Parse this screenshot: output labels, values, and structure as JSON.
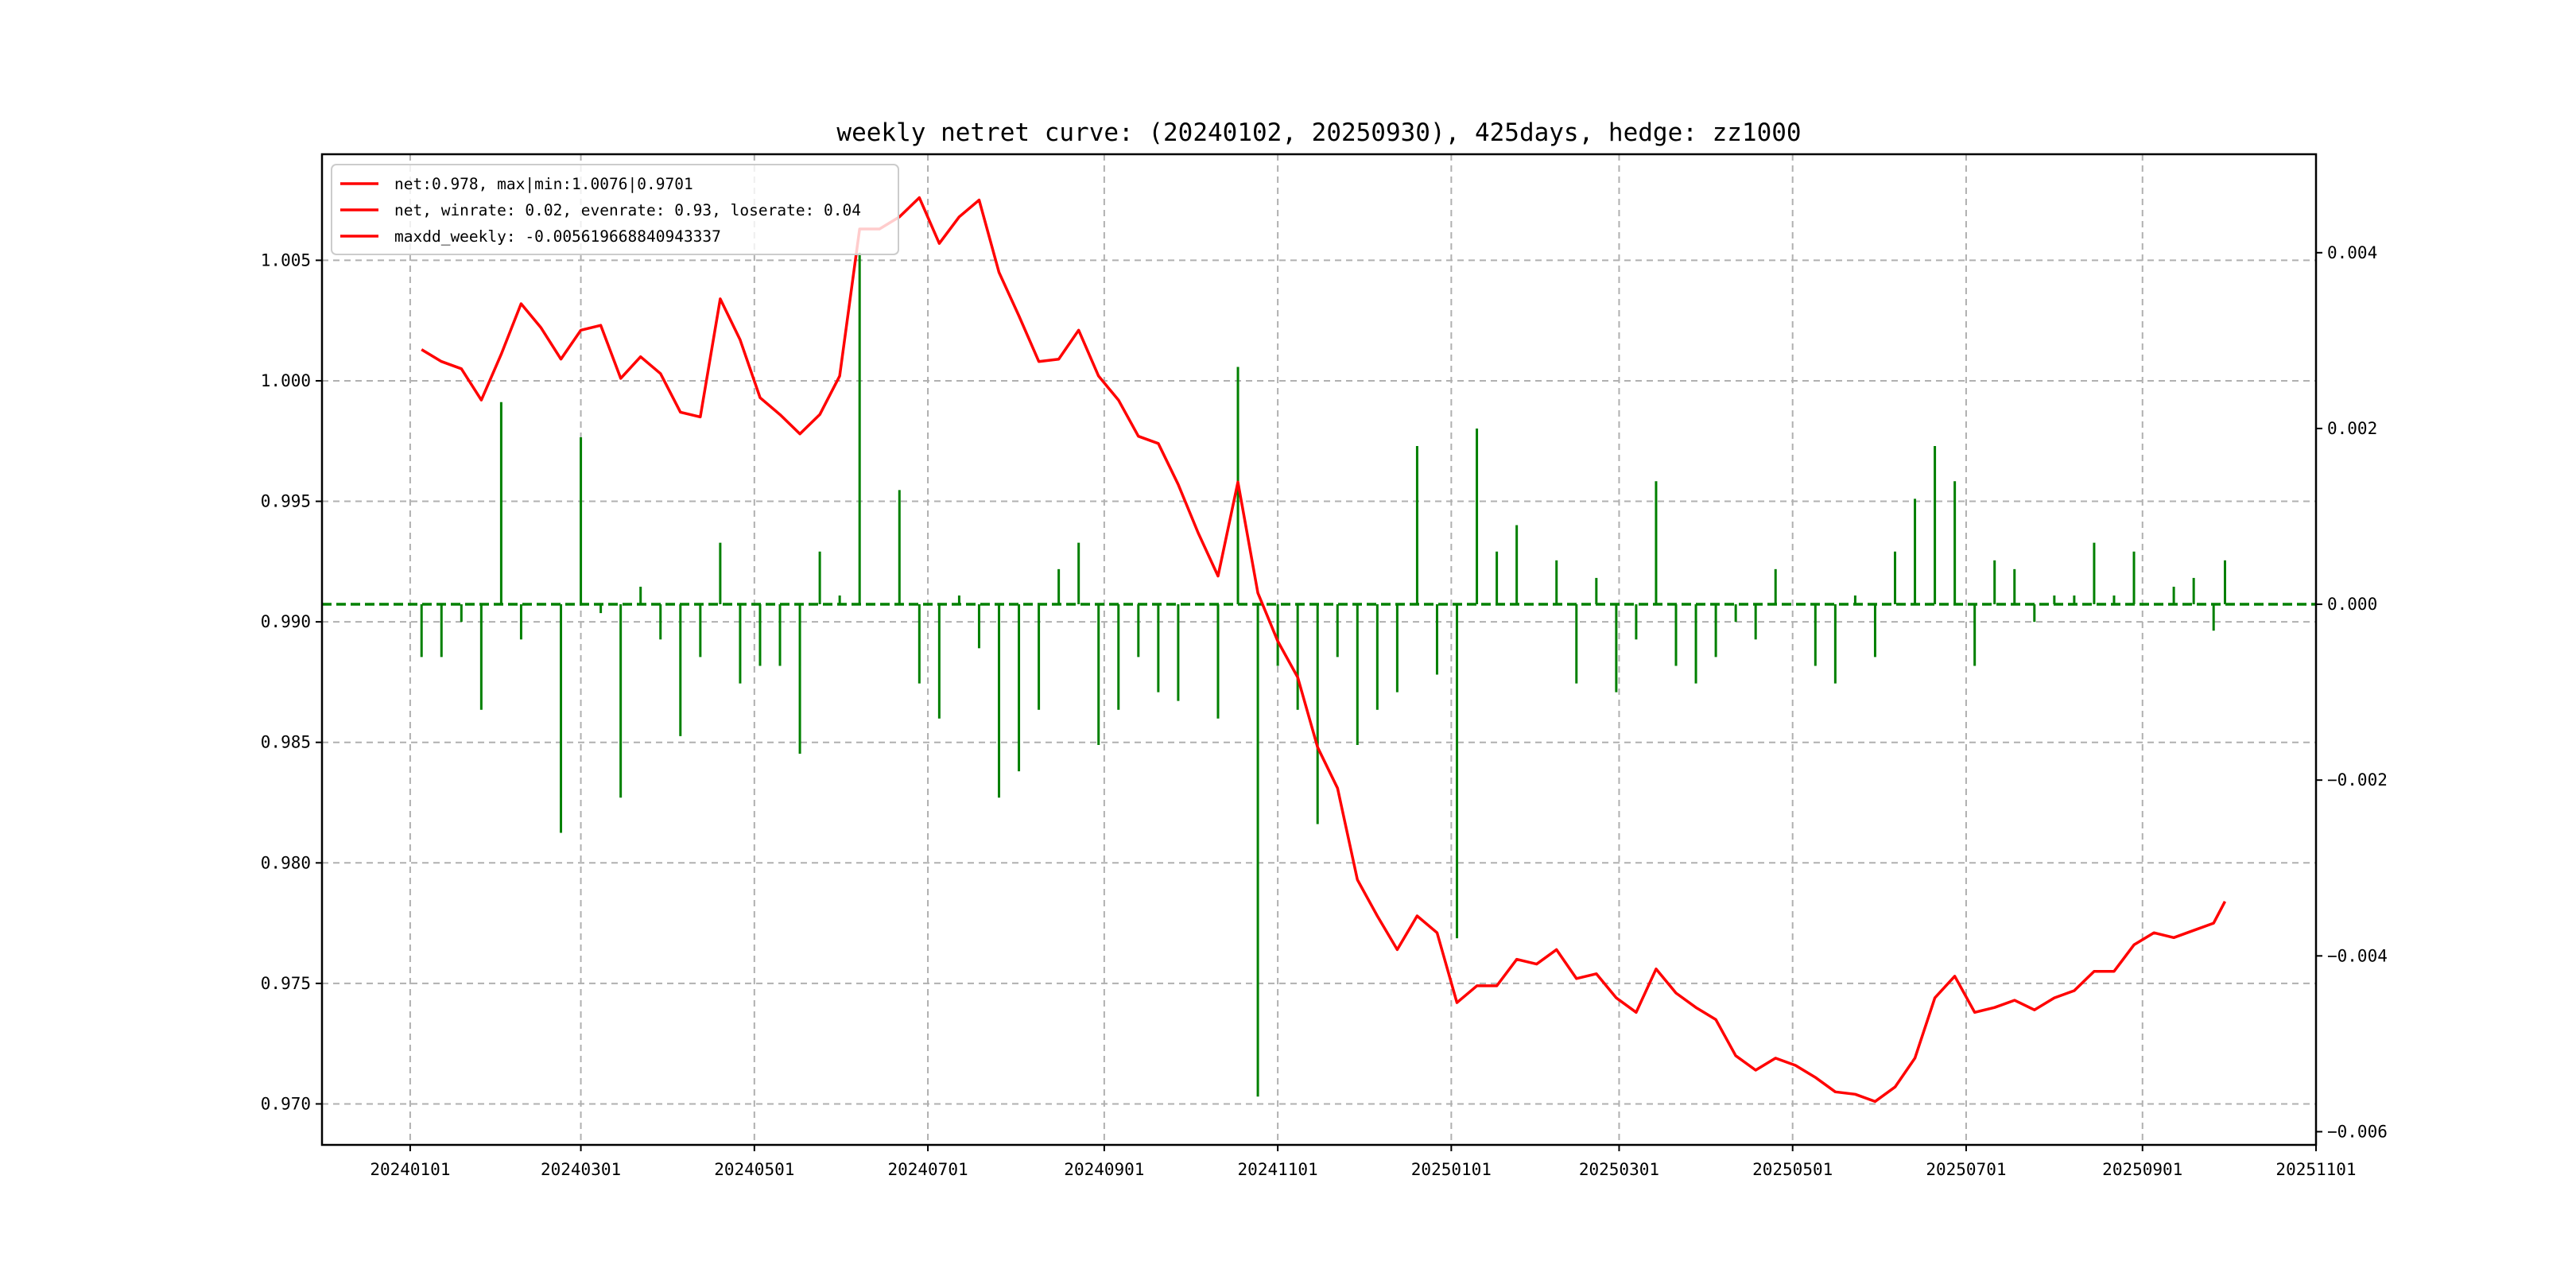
{
  "chart_data": {
    "type": "line+bar",
    "title": "weekly netret curve: (20240102, 20250930), 425days, hedge: zz1000",
    "xlabel": "",
    "ylabel": "",
    "x_start_date": "2024-01-05",
    "x_end_date": "2025-09-30",
    "xlim_dates": [
      "2023-12-05",
      "2025-11-01"
    ],
    "x_ticks": [
      "20240101",
      "20240301",
      "20240501",
      "20240701",
      "20240901",
      "20241101",
      "20250101",
      "20250301",
      "20250501",
      "20250701",
      "20250901",
      "20251101"
    ],
    "x_tick_days": [
      0,
      60,
      121,
      182,
      244,
      305,
      366,
      425,
      486,
      547,
      609,
      670
    ],
    "ylim_left": [
      0.9683,
      1.0094
    ],
    "y_ticks_left": [
      "0.970",
      "0.975",
      "0.980",
      "0.985",
      "0.990",
      "0.995",
      "1.000",
      "1.005"
    ],
    "ylim_right": [
      -0.00615,
      0.00512
    ],
    "y_ticks_right": [
      "−0.006",
      "−0.004",
      "−0.002",
      "0.000",
      "0.002",
      "0.004"
    ],
    "grid": true,
    "legend_position": "top-left",
    "legend": [
      "net:0.978, max|min:1.0076|0.9701",
      "net, winrate: 0.02, evenrate: 0.93, loserate: 0.04",
      "maxdd_weekly: -0.005619668840943337"
    ],
    "colors": {
      "net": "#ff0000",
      "weekly": "#008000",
      "zero_line": "#008000",
      "grid": "#b0b0b0"
    },
    "series": [
      {
        "name": "net",
        "axis": "left",
        "type": "line",
        "values": [
          1.0013,
          1.0008,
          1.0005,
          0.9992,
          1.0011,
          1.0032,
          1.0022,
          1.0009,
          1.0021,
          1.0023,
          1.0001,
          1.001,
          1.0003,
          0.9987,
          0.9985,
          1.0034,
          1.0017,
          0.9993,
          0.9986,
          0.9978,
          0.9986,
          1.0002,
          1.0063,
          1.0063,
          1.0068,
          1.0076,
          1.0057,
          1.0068,
          1.0075,
          1.0045,
          1.0027,
          1.0008,
          1.0009,
          1.0021,
          1.0002,
          0.9992,
          0.9977,
          0.9974,
          0.9957,
          0.9937,
          0.9919,
          0.9958,
          0.9912,
          0.9892,
          0.9877,
          0.9848,
          0.9831,
          0.9793,
          0.9778,
          0.9764,
          0.9778,
          0.9771,
          0.9742,
          0.9749,
          0.9749,
          0.976,
          0.9758,
          0.9764,
          0.9752,
          0.9754,
          0.9744,
          0.9738,
          0.9756,
          0.9746,
          0.974,
          0.9735,
          0.972,
          0.9714,
          0.9719,
          0.9716,
          0.9711,
          0.9705,
          0.9704,
          0.9701,
          0.9707,
          0.9719,
          0.9744,
          0.9753,
          0.9738,
          0.974,
          0.9743,
          0.9739,
          0.9744,
          0.9747,
          0.9755,
          0.9755,
          0.9766,
          0.9771,
          0.9769,
          0.9772,
          0.9775,
          0.9784
        ]
      },
      {
        "name": "weekly_ret",
        "axis": "right",
        "type": "bar",
        "values": [
          -0.0006,
          -0.0006,
          -0.0002,
          -0.0012,
          0.0023,
          -0.0004,
          0,
          -0.0026,
          0.0019,
          -0.0001,
          -0.0022,
          0.0002,
          -0.0004,
          -0.0015,
          -0.0006,
          0.0007,
          -0.0009,
          -0.0007,
          -0.0007,
          -0.0017,
          0.0006,
          0.0001,
          0.004,
          0,
          0.0013,
          -0.0009,
          -0.0013,
          0.0001,
          -0.0005,
          -0.0022,
          -0.0019,
          -0.0012,
          0.0004,
          0.0007,
          -0.0016,
          -0.0012,
          -0.0006,
          -0.001,
          -0.0011,
          0,
          -0.0013,
          0.0027,
          -0.0056,
          -0.0007,
          -0.0012,
          -0.0025,
          -0.0006,
          -0.0016,
          -0.0012,
          -0.001,
          0.0018,
          -0.0008,
          -0.0038,
          0.002,
          0.0006,
          0.0009,
          0,
          0.0005,
          -0.0009,
          0.0003,
          -0.001,
          -0.0004,
          0.0014,
          -0.0007,
          -0.0009,
          -0.0006,
          -0.0002,
          -0.0004,
          0.0004,
          0,
          -0.0007,
          -0.0009,
          0.0001,
          -0.0006,
          0.0006,
          0.0012,
          0.0018,
          0.0014,
          -0.0007,
          0.0005,
          0.0004,
          -0.0002,
          0.0001,
          0.0001,
          0.0007,
          0.0001,
          0.0006,
          0,
          0.0002,
          0.0003,
          -0.0003,
          0.0005
        ]
      }
    ]
  }
}
